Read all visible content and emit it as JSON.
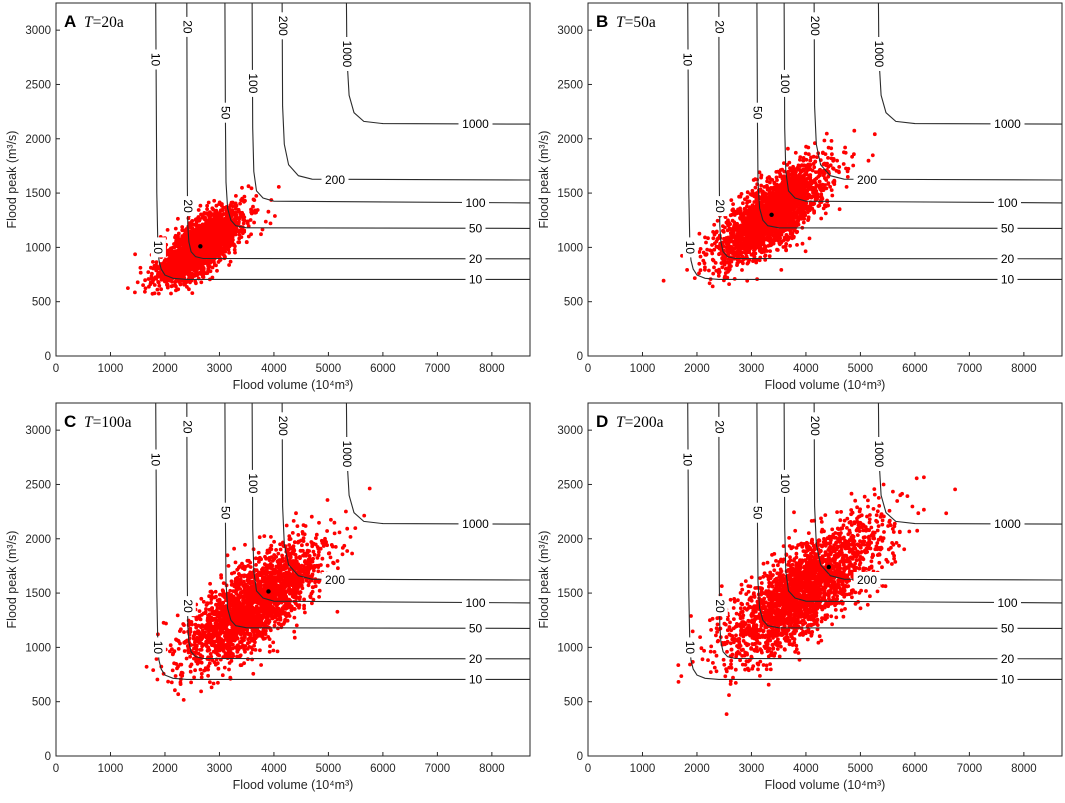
{
  "chart_data": [
    {
      "type": "scatter",
      "panel_label": "A",
      "title": "T=20a",
      "title_var": "T",
      "title_rest": "=20a",
      "xlabel": "Flood volume (10⁴m³)",
      "ylabel": "Flood peak (m³/s)",
      "xlim": [
        0,
        8700
      ],
      "ylim": [
        0,
        3250
      ],
      "xticks": [
        0,
        1000,
        2000,
        3000,
        4000,
        5000,
        6000,
        7000,
        8000
      ],
      "yticks": [
        0,
        500,
        1000,
        1500,
        2000,
        2500,
        3000
      ],
      "contour_levels": [
        "10",
        "20",
        "50",
        "100",
        "200",
        "1000"
      ],
      "design_point": {
        "x": 2650,
        "y": 1010
      },
      "scatter": {
        "color": "#ff0000",
        "n_points": 2400,
        "center": [
          2650,
          1010
        ],
        "sd": [
          380,
          170
        ],
        "rho": 0.72
      }
    },
    {
      "type": "scatter",
      "panel_label": "B",
      "title": "T=50a",
      "title_var": "T",
      "title_rest": "=50a",
      "xlabel": "Flood volume (10⁴m³)",
      "ylabel": "Flood peak (m³/s)",
      "xlim": [
        0,
        8700
      ],
      "ylim": [
        0,
        3250
      ],
      "xticks": [
        0,
        1000,
        2000,
        3000,
        4000,
        5000,
        6000,
        7000,
        8000
      ],
      "yticks": [
        0,
        500,
        1000,
        1500,
        2000,
        2500,
        3000
      ],
      "contour_levels": [
        "10",
        "20",
        "50",
        "100",
        "200",
        "1000"
      ],
      "design_point": {
        "x": 3370,
        "y": 1300
      },
      "scatter": {
        "color": "#ff0000",
        "n_points": 2400,
        "center": [
          3370,
          1300
        ],
        "sd": [
          500,
          230
        ],
        "rho": 0.74
      }
    },
    {
      "type": "scatter",
      "panel_label": "C",
      "title": "T=100a",
      "title_var": "T",
      "title_rest": "=100a",
      "xlabel": "Flood volume (10⁴m³)",
      "ylabel": "Flood peak (m³/s)",
      "xlim": [
        0,
        8700
      ],
      "ylim": [
        0,
        3250
      ],
      "xticks": [
        0,
        1000,
        2000,
        3000,
        4000,
        5000,
        6000,
        7000,
        8000
      ],
      "yticks": [
        0,
        500,
        1000,
        1500,
        2000,
        2500,
        3000
      ],
      "contour_levels": [
        "10",
        "20",
        "50",
        "100",
        "200",
        "1000"
      ],
      "design_point": {
        "x": 3900,
        "y": 1515
      },
      "scatter": {
        "color": "#ff0000",
        "n_points": 2400,
        "center": [
          3600,
          1380
        ],
        "sd": [
          620,
          280
        ],
        "rho": 0.75
      }
    },
    {
      "type": "scatter",
      "panel_label": "D",
      "title": "T=200a",
      "title_var": "T",
      "title_rest": "=200a",
      "xlabel": "Flood volume (10⁴m³)",
      "ylabel": "Flood peak (m³/s)",
      "xlim": [
        0,
        8700
      ],
      "ylim": [
        0,
        3250
      ],
      "xticks": [
        0,
        1000,
        2000,
        3000,
        4000,
        5000,
        6000,
        7000,
        8000
      ],
      "yticks": [
        0,
        500,
        1000,
        1500,
        2000,
        2500,
        3000
      ],
      "contour_levels": [
        "10",
        "20",
        "50",
        "100",
        "200",
        "1000"
      ],
      "design_point": {
        "x": 4420,
        "y": 1740
      },
      "scatter": {
        "color": "#ff0000",
        "n_points": 2400,
        "center": [
          3950,
          1520
        ],
        "sd": [
          720,
          320
        ],
        "rho": 0.75
      }
    }
  ]
}
